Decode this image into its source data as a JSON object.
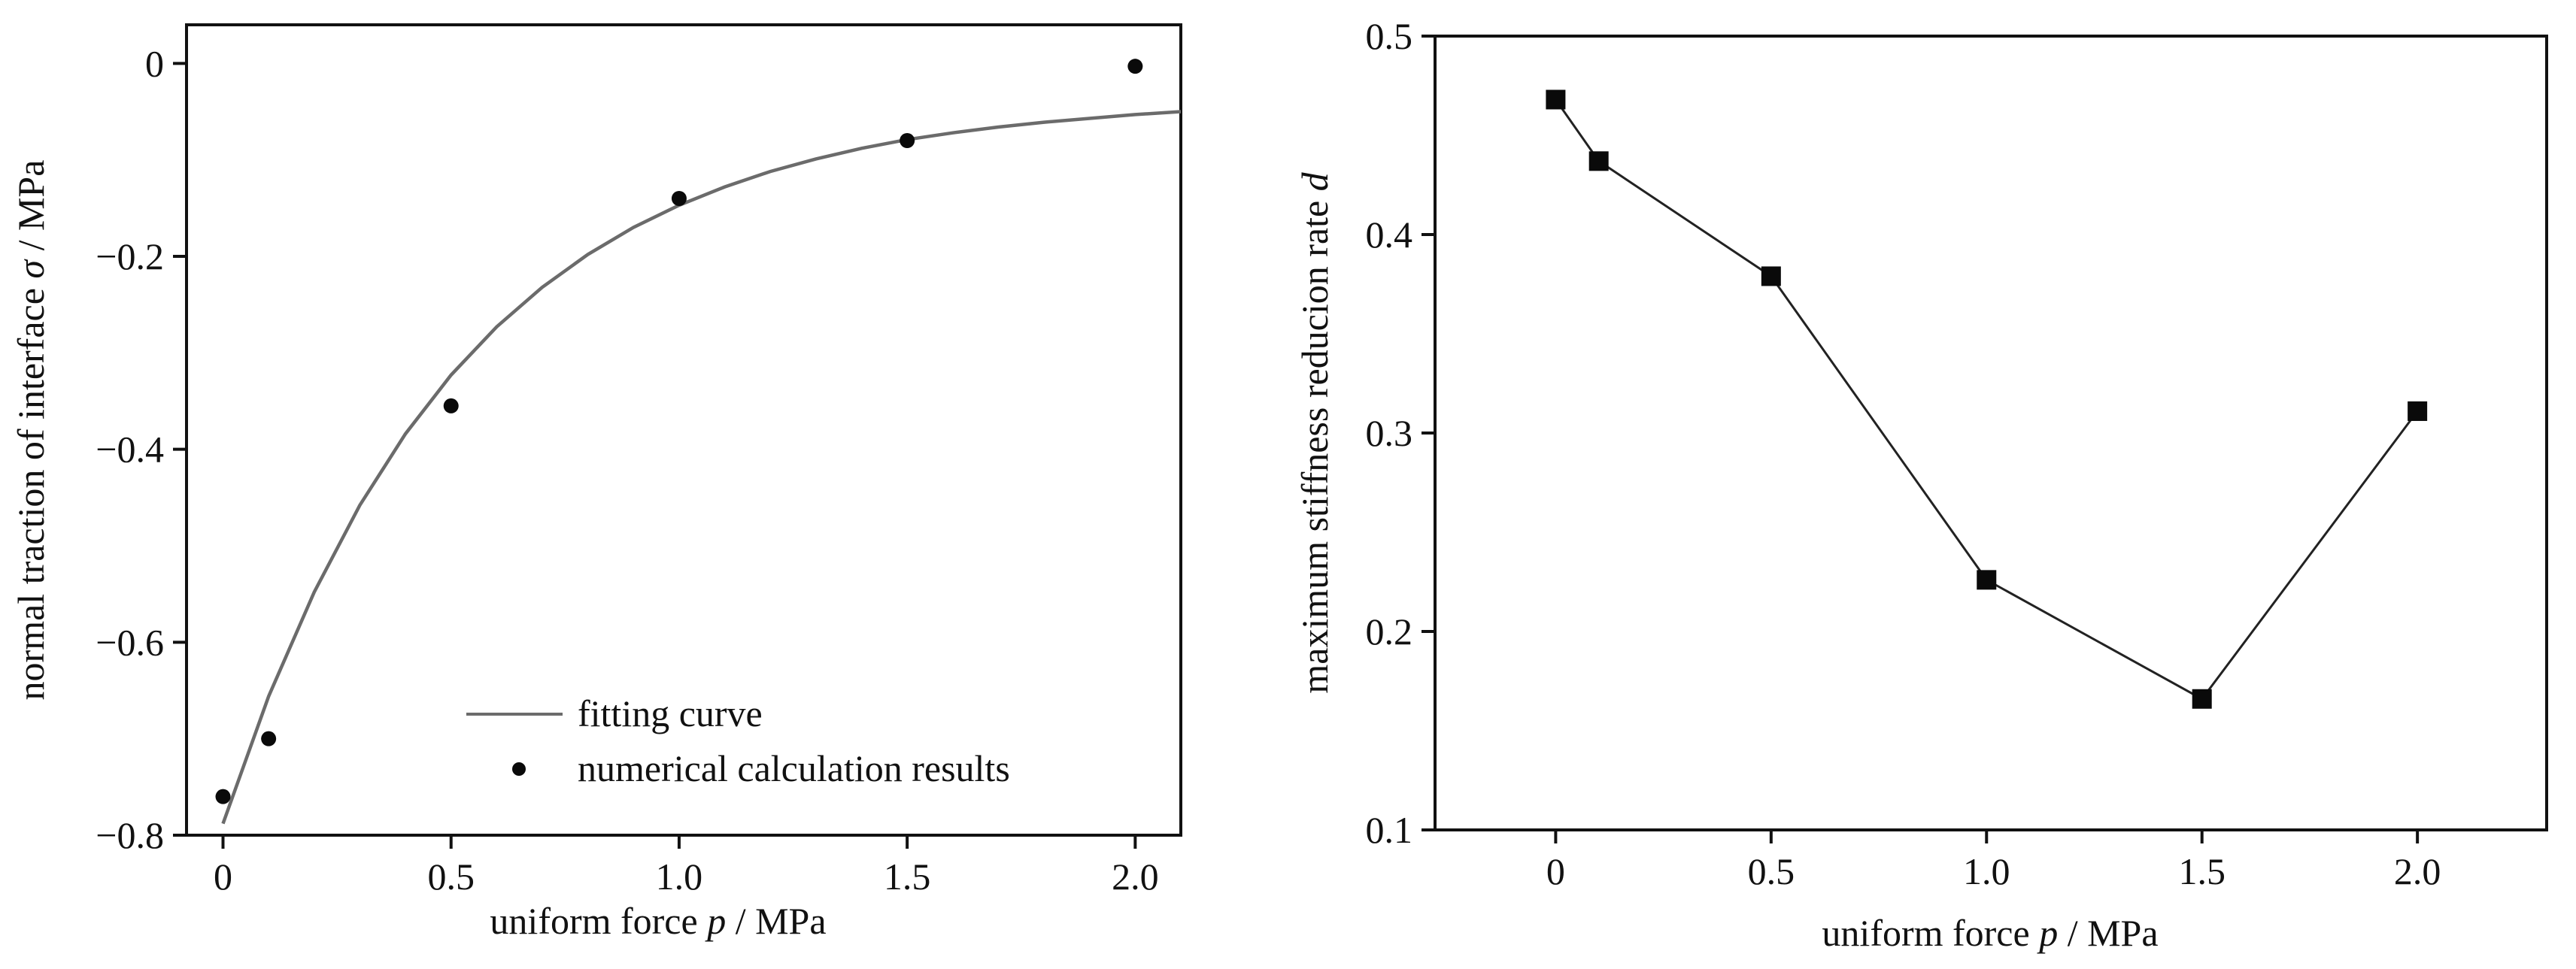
{
  "colors": {
    "frame": "#111111",
    "fit_curve": "#6b6b6b",
    "markers": "#0a0a0a",
    "line": "#222222"
  },
  "chart_data": [
    {
      "type": "scatter",
      "ylabel_prefix": "normal traction of  interface ",
      "ylabel_symbol": "σ",
      "ylabel_suffix": " / MPa",
      "xlabel_prefix": "uniform force ",
      "xlabel_symbol": "p",
      "xlabel_suffix": " / MPa",
      "xlim": [
        -0.08,
        2.1
      ],
      "ylim": [
        -0.8,
        0.04
      ],
      "xticks": [
        0,
        0.5,
        1.0,
        1.5,
        2.0
      ],
      "xtick_labels": [
        "0",
        "0.5",
        "1.0",
        "1.5",
        "2.0"
      ],
      "yticks": [
        0,
        -0.2,
        -0.4,
        -0.6,
        -0.8
      ],
      "ytick_labels": [
        "0",
        "−0.2",
        "−0.4",
        "−0.6",
        "−0.8"
      ],
      "grid": false,
      "legend_position": "bottom-right",
      "series": [
        {
          "name": "fitting curve",
          "kind": "line",
          "x": [
            0,
            0.1,
            0.2,
            0.3,
            0.4,
            0.5,
            0.6,
            0.7,
            0.8,
            0.9,
            1.0,
            1.1,
            1.2,
            1.3,
            1.4,
            1.5,
            1.6,
            1.7,
            1.8,
            1.9,
            2.0,
            2.1
          ],
          "y": [
            -0.788,
            -0.656,
            -0.548,
            -0.458,
            -0.384,
            -0.323,
            -0.273,
            -0.232,
            -0.198,
            -0.17,
            -0.147,
            -0.128,
            -0.112,
            -0.099,
            -0.088,
            -0.079,
            -0.072,
            -0.066,
            -0.061,
            -0.057,
            -0.053,
            -0.05
          ]
        },
        {
          "name": "numerical calculation results",
          "kind": "scatter",
          "x": [
            0,
            0.1,
            0.5,
            1.0,
            1.5,
            2.0
          ],
          "y": [
            -0.76,
            -0.7,
            -0.355,
            -0.14,
            -0.08,
            -0.003
          ]
        }
      ]
    },
    {
      "type": "line",
      "ylabel_prefix": "maximum stiffness reducion rate ",
      "ylabel_symbol": "d",
      "ylabel_suffix": "",
      "xlabel_prefix": "uniform force ",
      "xlabel_symbol": "p",
      "xlabel_suffix": " / MPa",
      "xlim": [
        -0.28,
        2.3
      ],
      "ylim": [
        0.1,
        0.5
      ],
      "xticks": [
        0,
        0.5,
        1.0,
        1.5,
        2.0
      ],
      "xtick_labels": [
        "0",
        "0.5",
        "1.0",
        "1.5",
        "2.0"
      ],
      "yticks": [
        0.1,
        0.2,
        0.3,
        0.4,
        0.5
      ],
      "ytick_labels": [
        "0.1",
        "0.2",
        "0.3",
        "0.4",
        "0.5"
      ],
      "grid": false,
      "series": [
        {
          "kind": "line-marker",
          "x": [
            0,
            0.1,
            0.5,
            1.0,
            1.5,
            2.0
          ],
          "y": [
            0.468,
            0.437,
            0.379,
            0.226,
            0.166,
            0.311
          ]
        }
      ]
    }
  ]
}
